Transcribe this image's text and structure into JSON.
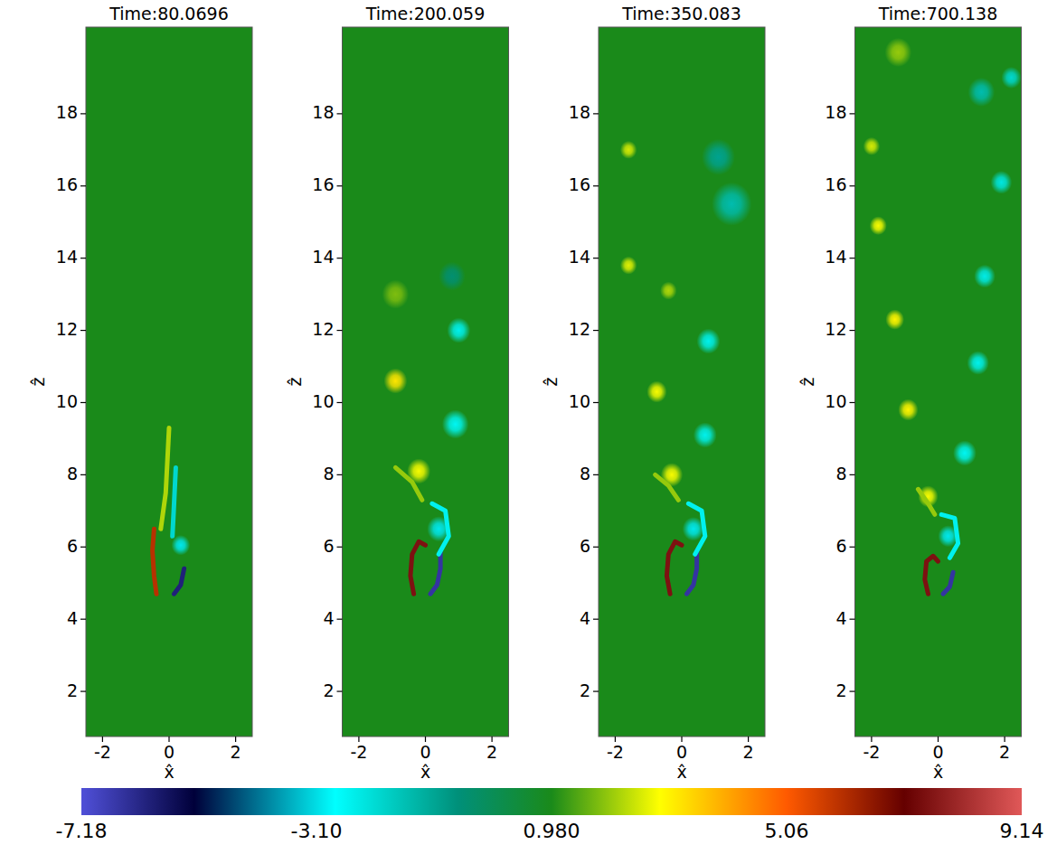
{
  "chart_data": [
    {
      "type": "heatmap",
      "title": "Time:80.0696",
      "xlabel": "x̂",
      "ylabel": "ẑ",
      "xlim": [
        -2.5,
        2.5
      ],
      "ylim": [
        0.75,
        20.4
      ],
      "xticks": [
        -2,
        0,
        2
      ],
      "yticks": [
        2,
        4,
        6,
        8,
        10,
        12,
        14,
        16,
        18
      ],
      "background_value": 0.98,
      "layers": [
        {
          "value": 6.0,
          "points": [
            [
              -0.38,
              4.7
            ],
            [
              -0.45,
              5.2
            ],
            [
              -0.5,
              5.9
            ],
            [
              -0.45,
              6.5
            ]
          ]
        },
        {
          "value": -6.0,
          "points": [
            [
              0.15,
              4.7
            ],
            [
              0.35,
              4.95
            ],
            [
              0.45,
              5.4
            ]
          ]
        },
        {
          "value": 2.2,
          "points": [
            [
              -0.25,
              6.5
            ],
            [
              -0.1,
              7.5
            ],
            [
              0.0,
              9.3
            ]
          ]
        },
        {
          "value": -2.0,
          "points": [
            [
              0.1,
              6.3
            ],
            [
              0.15,
              7.2
            ],
            [
              0.2,
              8.2
            ]
          ]
        }
      ],
      "vortices": [
        {
          "x": 0.35,
          "z": 6.05,
          "value": -3.0,
          "size": 0.28
        }
      ]
    },
    {
      "type": "heatmap",
      "title": "Time:200.059",
      "xlabel": "x̂",
      "ylabel": "ẑ",
      "xlim": [
        -2.5,
        2.5
      ],
      "ylim": [
        0.75,
        20.4
      ],
      "xticks": [
        -2,
        0,
        2
      ],
      "yticks": [
        2,
        4,
        6,
        8,
        10,
        12,
        14,
        16,
        18
      ],
      "background_value": 0.98,
      "layers": [
        {
          "value": 7.5,
          "points": [
            [
              -0.35,
              4.7
            ],
            [
              -0.45,
              5.2
            ],
            [
              -0.4,
              5.8
            ],
            [
              -0.2,
              6.15
            ],
            [
              0.0,
              6.05
            ]
          ]
        },
        {
          "value": -6.5,
          "points": [
            [
              0.15,
              4.7
            ],
            [
              0.35,
              4.95
            ],
            [
              0.45,
              5.4
            ],
            [
              0.45,
              5.9
            ]
          ]
        },
        {
          "value": -2.5,
          "points": [
            [
              0.4,
              5.8
            ],
            [
              0.7,
              6.3
            ],
            [
              0.6,
              7.0
            ],
            [
              0.2,
              7.2
            ]
          ]
        },
        {
          "value": 2.0,
          "points": [
            [
              -0.1,
              7.3
            ],
            [
              -0.4,
              7.8
            ],
            [
              -0.9,
              8.2
            ]
          ]
        }
      ],
      "vortices": [
        {
          "x": 0.4,
          "z": 6.5,
          "value": -3.0,
          "size": 0.35
        },
        {
          "x": -0.2,
          "z": 8.1,
          "value": 2.8,
          "size": 0.35
        },
        {
          "x": 0.9,
          "z": 9.4,
          "value": -2.6,
          "size": 0.4
        },
        {
          "x": -0.9,
          "z": 10.6,
          "value": 3.2,
          "size": 0.35
        },
        {
          "x": 1.0,
          "z": 12.0,
          "value": -2.5,
          "size": 0.35
        },
        {
          "x": -0.9,
          "z": 13.0,
          "value": 1.8,
          "size": 0.4
        },
        {
          "x": 0.8,
          "z": 13.5,
          "value": -0.5,
          "size": 0.4
        }
      ]
    },
    {
      "type": "heatmap",
      "title": "Time:350.083",
      "xlabel": "x̂",
      "ylabel": "ẑ",
      "xlim": [
        -2.5,
        2.5
      ],
      "ylim": [
        0.75,
        20.4
      ],
      "xticks": [
        -2,
        0,
        2
      ],
      "yticks": [
        2,
        4,
        6,
        8,
        10,
        12,
        14,
        16,
        18
      ],
      "background_value": 0.98,
      "layers": [
        {
          "value": 7.5,
          "points": [
            [
              -0.35,
              4.7
            ],
            [
              -0.45,
              5.2
            ],
            [
              -0.4,
              5.8
            ],
            [
              -0.2,
              6.15
            ],
            [
              0.0,
              6.05
            ]
          ]
        },
        {
          "value": -6.5,
          "points": [
            [
              0.15,
              4.7
            ],
            [
              0.35,
              4.95
            ],
            [
              0.45,
              5.4
            ],
            [
              0.45,
              5.9
            ]
          ]
        },
        {
          "value": -2.5,
          "points": [
            [
              0.4,
              5.8
            ],
            [
              0.7,
              6.3
            ],
            [
              0.6,
              7.0
            ],
            [
              0.2,
              7.2
            ]
          ]
        },
        {
          "value": 2.0,
          "points": [
            [
              -0.1,
              7.3
            ],
            [
              -0.4,
              7.7
            ],
            [
              -0.8,
              8.0
            ]
          ]
        }
      ],
      "vortices": [
        {
          "x": 0.35,
          "z": 6.5,
          "value": -3.0,
          "size": 0.33
        },
        {
          "x": -0.3,
          "z": 8.0,
          "value": 2.8,
          "size": 0.33
        },
        {
          "x": 0.7,
          "z": 9.1,
          "value": -2.5,
          "size": 0.35
        },
        {
          "x": -0.75,
          "z": 10.3,
          "value": 2.8,
          "size": 0.3
        },
        {
          "x": 0.8,
          "z": 11.7,
          "value": -2.5,
          "size": 0.35
        },
        {
          "x": -0.4,
          "z": 13.1,
          "value": 2.2,
          "size": 0.25
        },
        {
          "x": -1.6,
          "z": 13.8,
          "value": 2.6,
          "size": 0.25
        },
        {
          "x": -1.6,
          "z": 17.0,
          "value": 2.5,
          "size": 0.25
        },
        {
          "x": 1.5,
          "z": 15.5,
          "value": -1.5,
          "size": 0.6
        },
        {
          "x": 1.1,
          "z": 16.8,
          "value": -1.0,
          "size": 0.5
        }
      ]
    },
    {
      "type": "heatmap",
      "title": "Time:700.138",
      "xlabel": "x̂",
      "ylabel": "ẑ",
      "xlim": [
        -2.5,
        2.5
      ],
      "ylim": [
        0.75,
        20.4
      ],
      "xticks": [
        -2,
        0,
        2
      ],
      "yticks": [
        2,
        4,
        6,
        8,
        10,
        12,
        14,
        16,
        18
      ],
      "background_value": 0.98,
      "layers": [
        {
          "value": 7.5,
          "points": [
            [
              -0.3,
              4.7
            ],
            [
              -0.4,
              5.1
            ],
            [
              -0.35,
              5.6
            ],
            [
              -0.15,
              5.75
            ],
            [
              0.0,
              5.6
            ]
          ]
        },
        {
          "value": -6.5,
          "points": [
            [
              0.15,
              4.7
            ],
            [
              0.35,
              4.9
            ],
            [
              0.45,
              5.3
            ]
          ]
        },
        {
          "value": -2.5,
          "points": [
            [
              0.35,
              5.7
            ],
            [
              0.6,
              6.1
            ],
            [
              0.5,
              6.8
            ],
            [
              0.1,
              6.9
            ]
          ]
        },
        {
          "value": 2.0,
          "points": [
            [
              -0.1,
              6.9
            ],
            [
              -0.3,
              7.2
            ],
            [
              -0.6,
              7.6
            ]
          ]
        }
      ],
      "vortices": [
        {
          "x": 0.3,
          "z": 6.3,
          "value": -3.0,
          "size": 0.3
        },
        {
          "x": -0.3,
          "z": 7.4,
          "value": 2.8,
          "size": 0.3
        },
        {
          "x": 0.8,
          "z": 8.6,
          "value": -2.6,
          "size": 0.35
        },
        {
          "x": -0.9,
          "z": 9.8,
          "value": 3.0,
          "size": 0.3
        },
        {
          "x": 1.2,
          "z": 11.1,
          "value": -2.5,
          "size": 0.33
        },
        {
          "x": -1.3,
          "z": 12.3,
          "value": 3.0,
          "size": 0.28
        },
        {
          "x": 1.4,
          "z": 13.5,
          "value": -2.4,
          "size": 0.32
        },
        {
          "x": -1.8,
          "z": 14.9,
          "value": 2.8,
          "size": 0.26
        },
        {
          "x": 1.9,
          "z": 16.1,
          "value": -2.3,
          "size": 0.32
        },
        {
          "x": -2.0,
          "z": 17.1,
          "value": 2.5,
          "size": 0.25
        },
        {
          "x": 1.3,
          "z": 18.6,
          "value": -1.5,
          "size": 0.4
        },
        {
          "x": 2.2,
          "z": 19.0,
          "value": -2.0,
          "size": 0.3
        },
        {
          "x": -1.2,
          "z": 19.7,
          "value": 2.0,
          "size": 0.4
        }
      ]
    }
  ],
  "colorbar": {
    "range": [
      -7.18,
      9.14
    ],
    "ticks": [
      -7.18,
      {
        "value": -3.1,
        "label": "-3.10"
      },
      {
        "value": 0.98,
        "label": "0.980"
      },
      5.06,
      9.14
    ]
  }
}
